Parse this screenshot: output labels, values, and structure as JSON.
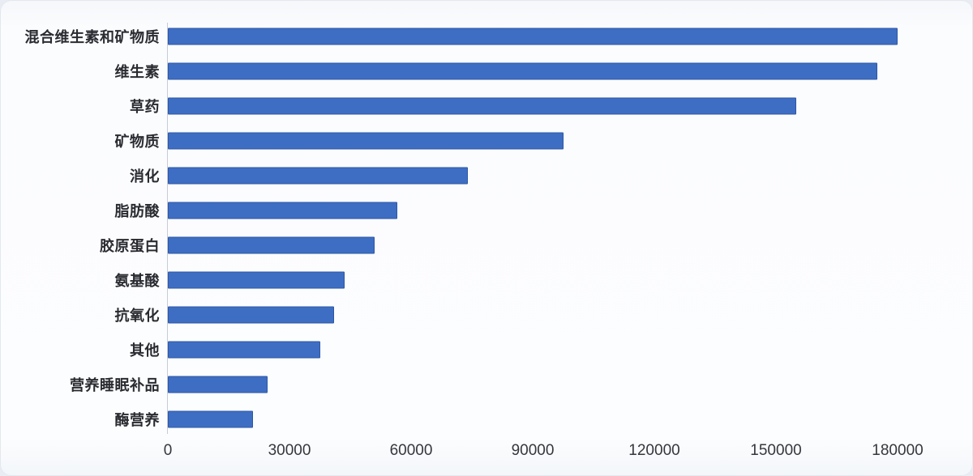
{
  "chart_data": {
    "type": "bar",
    "orientation": "horizontal",
    "title": "",
    "xlabel": "",
    "ylabel": "",
    "categories": [
      "混合维生素和矿物质",
      "维生素",
      "草药",
      "矿物质",
      "消化",
      "脂肪酸",
      "胶原蛋白",
      "氨基酸",
      "抗氧化",
      "其他",
      "营养睡眠补品",
      "酶营养"
    ],
    "values": [
      180000,
      175000,
      155000,
      97500,
      74000,
      56500,
      51000,
      43500,
      41000,
      37500,
      24500,
      21000
    ],
    "xlim": [
      0,
      189000
    ],
    "xticks": [
      0,
      30000,
      60000,
      90000,
      120000,
      150000,
      180000
    ],
    "xtick_labels": [
      "0",
      "30000",
      "60000",
      "90000",
      "120000",
      "150000",
      "180000"
    ],
    "grid": false,
    "legend": "none"
  },
  "colors": {
    "bar_fill": "#3e6ec3",
    "bar_border": "#2d57a4",
    "axis_line": "#c6ccd6",
    "category_label_text": "#2a2b31",
    "tick_label_text": "#35373d",
    "background": "#fcfdfe"
  }
}
